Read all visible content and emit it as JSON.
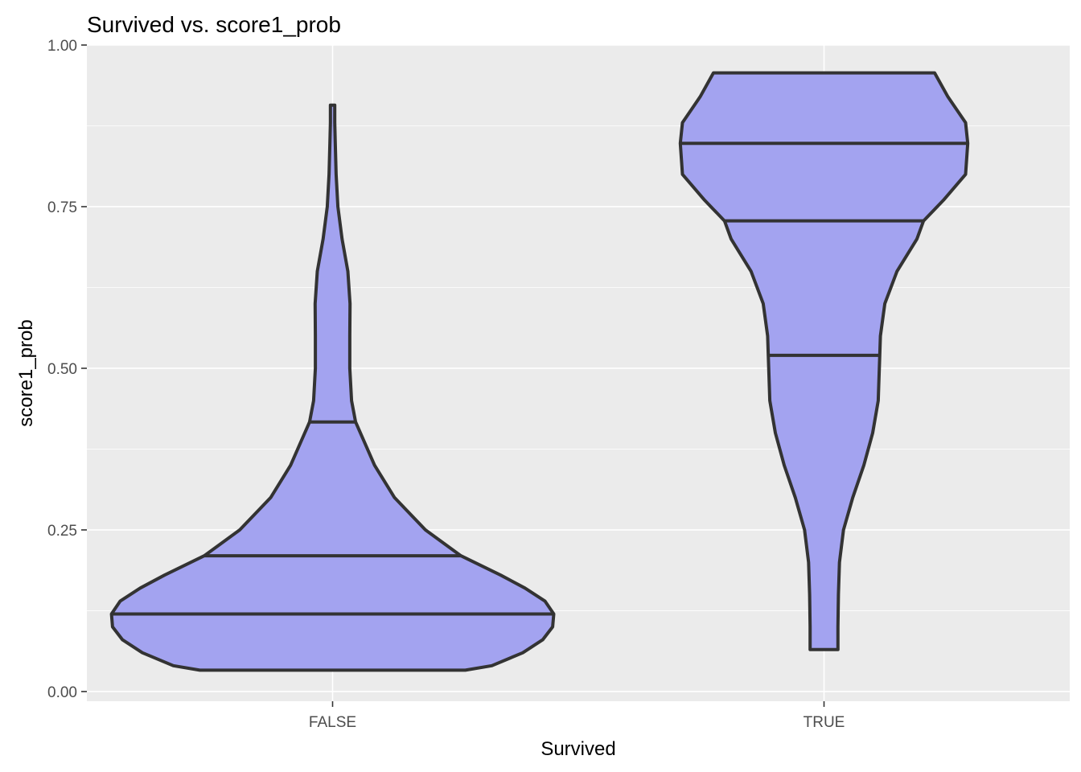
{
  "chart_data": {
    "type": "violin",
    "title": "Survived vs. score1_prob",
    "xlabel": "Survived",
    "ylabel": "score1_prob",
    "ylim": [
      -0.015,
      1.0
    ],
    "yticks": [
      0.0,
      0.25,
      0.5,
      0.75,
      1.0
    ],
    "ytick_labels": [
      "0.00",
      "0.25",
      "0.50",
      "0.75",
      "1.00"
    ],
    "categories": [
      "FALSE",
      "TRUE"
    ],
    "fill_color": "#a3a3f0",
    "outline_color": "#333333",
    "panel_background": "#ebebeb",
    "grid": true,
    "legend": "none",
    "violins": [
      {
        "category": "FALSE",
        "quantiles": [
          0.12,
          0.21,
          0.417
        ],
        "profile": [
          [
            0.033,
            0.6
          ],
          [
            0.04,
            0.72
          ],
          [
            0.06,
            0.86
          ],
          [
            0.08,
            0.95
          ],
          [
            0.1,
            0.995
          ],
          [
            0.12,
            1.0
          ],
          [
            0.14,
            0.96
          ],
          [
            0.16,
            0.87
          ],
          [
            0.18,
            0.76
          ],
          [
            0.21,
            0.58
          ],
          [
            0.25,
            0.42
          ],
          [
            0.3,
            0.28
          ],
          [
            0.35,
            0.19
          ],
          [
            0.417,
            0.104
          ],
          [
            0.45,
            0.086
          ],
          [
            0.5,
            0.078
          ],
          [
            0.55,
            0.078
          ],
          [
            0.6,
            0.079
          ],
          [
            0.65,
            0.069
          ],
          [
            0.7,
            0.043
          ],
          [
            0.75,
            0.024
          ],
          [
            0.8,
            0.016
          ],
          [
            0.85,
            0.012
          ],
          [
            0.88,
            0.01
          ],
          [
            0.907,
            0.01
          ]
        ]
      },
      {
        "category": "TRUE",
        "quantiles": [
          0.52,
          0.728,
          0.848
        ],
        "profile": [
          [
            0.065,
            0.063
          ],
          [
            0.1,
            0.063
          ],
          [
            0.15,
            0.065
          ],
          [
            0.2,
            0.07
          ],
          [
            0.25,
            0.088
          ],
          [
            0.3,
            0.13
          ],
          [
            0.35,
            0.18
          ],
          [
            0.4,
            0.22
          ],
          [
            0.45,
            0.245
          ],
          [
            0.52,
            0.252
          ],
          [
            0.55,
            0.255
          ],
          [
            0.6,
            0.275
          ],
          [
            0.65,
            0.33
          ],
          [
            0.7,
            0.42
          ],
          [
            0.728,
            0.45
          ],
          [
            0.76,
            0.54
          ],
          [
            0.8,
            0.64
          ],
          [
            0.848,
            0.65
          ],
          [
            0.88,
            0.64
          ],
          [
            0.92,
            0.56
          ],
          [
            0.957,
            0.5
          ]
        ]
      }
    ]
  }
}
